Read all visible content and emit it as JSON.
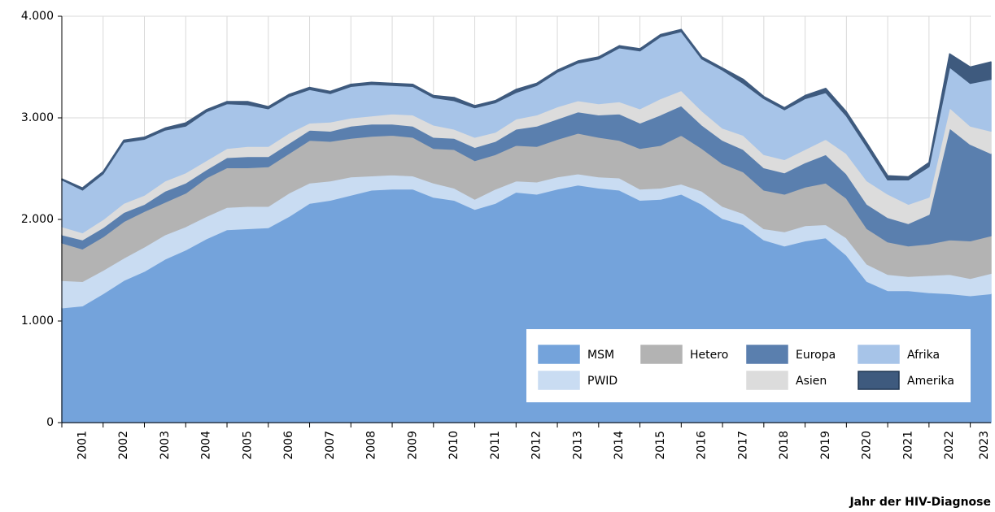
{
  "chart_data": {
    "type": "stacked-area",
    "x_label": "Jahr der HIV-Diagnose",
    "categories": [
      "2001",
      null,
      "2002",
      null,
      "2003",
      null,
      "2004",
      null,
      "2005",
      null,
      "2006",
      null,
      "2007",
      null,
      "2008",
      null,
      "2009",
      null,
      "2010",
      null,
      "2011",
      null,
      "2012",
      null,
      "2013",
      null,
      "2014",
      null,
      "2015",
      null,
      "2016",
      null,
      "2017",
      null,
      "2018",
      null,
      "2019",
      null,
      "2020",
      null,
      "2021",
      null,
      "2022",
      null,
      "2023",
      null
    ],
    "ylim": [
      0,
      4000
    ],
    "yticks": [
      0,
      {
        "value": 1000,
        "label": "1.000"
      },
      {
        "value": 2000,
        "label": "2.000"
      },
      {
        "value": 3000,
        "label": "3.000"
      },
      {
        "value": 4000,
        "label": "4.000"
      }
    ],
    "grid": true,
    "legend": "lower-right",
    "series": [
      {
        "name": "MSM",
        "color": "#74a3db",
        "values": [
          1130,
          1150,
          1270,
          1400,
          1490,
          1610,
          1700,
          1810,
          1900,
          1910,
          1920,
          2030,
          2160,
          2190,
          2240,
          2290,
          2300,
          2300,
          2220,
          2190,
          2100,
          2160,
          2270,
          2250,
          2300,
          2340,
          2310,
          2290,
          2190,
          2200,
          2250,
          2150,
          2010,
          1950,
          1800,
          1740,
          1790,
          1820,
          1650,
          1390,
          1300,
          1300,
          1280,
          1270,
          1250,
          1270
        ]
      },
      {
        "name": "PWID",
        "color": "#c9dcf2",
        "values": [
          270,
          240,
          230,
          220,
          240,
          240,
          230,
          220,
          220,
          220,
          210,
          230,
          200,
          190,
          180,
          140,
          140,
          130,
          140,
          120,
          100,
          140,
          110,
          120,
          120,
          110,
          110,
          120,
          110,
          110,
          100,
          130,
          120,
          110,
          110,
          140,
          150,
          130,
          170,
          170,
          160,
          140,
          170,
          190,
          170,
          200
        ]
      },
      {
        "name": "Hetero",
        "color": "#b3b3b3",
        "values": [
          370,
          320,
          330,
          360,
          350,
          320,
          330,
          380,
          390,
          380,
          390,
          390,
          420,
          390,
          380,
          390,
          390,
          380,
          340,
          380,
          380,
          340,
          350,
          350,
          370,
          400,
          390,
          370,
          400,
          420,
          480,
          420,
          420,
          410,
          380,
          370,
          380,
          410,
          390,
          350,
          320,
          300,
          310,
          340,
          370,
          370
        ]
      },
      {
        "name": "Europa",
        "color": "#5a7fae",
        "values": [
          80,
          90,
          90,
          90,
          70,
          110,
          100,
          80,
          100,
          110,
          100,
          100,
          100,
          100,
          120,
          120,
          110,
          110,
          110,
          110,
          130,
          130,
          160,
          200,
          200,
          210,
          220,
          260,
          250,
          300,
          290,
          230,
          230,
          220,
          220,
          210,
          240,
          280,
          240,
          240,
          240,
          220,
          290,
          1100,
          950,
          810
        ]
      },
      {
        "name": "Asien",
        "color": "#dcdcdc",
        "values": [
          80,
          70,
          80,
          90,
          90,
          100,
          100,
          90,
          90,
          100,
          100,
          100,
          70,
          90,
          80,
          80,
          100,
          110,
          120,
          90,
          100,
          90,
          100,
          110,
          120,
          110,
          110,
          120,
          140,
          160,
          150,
          140,
          120,
          140,
          130,
          130,
          130,
          150,
          200,
          230,
          230,
          190,
          170,
          200,
          180,
          220
        ]
      },
      {
        "name": "Afrika",
        "color": "#a7c4e8",
        "values": [
          460,
          420,
          450,
          600,
          550,
          500,
          460,
          480,
          440,
          410,
          370,
          360,
          330,
          280,
          310,
          310,
          280,
          280,
          270,
          280,
          290,
          290,
          260,
          290,
          340,
          370,
          440,
          530,
          570,
          610,
          580,
          510,
          570,
          510,
          550,
          490,
          500,
          460,
          370,
          330,
          140,
          240,
          300,
          400,
          420,
          510
        ]
      },
      {
        "name": "Amerika",
        "color": "#3e5a7e",
        "values": [
          10,
          20,
          20,
          20,
          20,
          20,
          30,
          20,
          20,
          30,
          20,
          20,
          20,
          20,
          20,
          20,
          20,
          20,
          20,
          30,
          20,
          20,
          30,
          20,
          20,
          20,
          20,
          20,
          20,
          20,
          20,
          20,
          20,
          40,
          20,
          20,
          30,
          40,
          40,
          40,
          40,
          30,
          40,
          130,
          160,
          170
        ]
      }
    ]
  }
}
